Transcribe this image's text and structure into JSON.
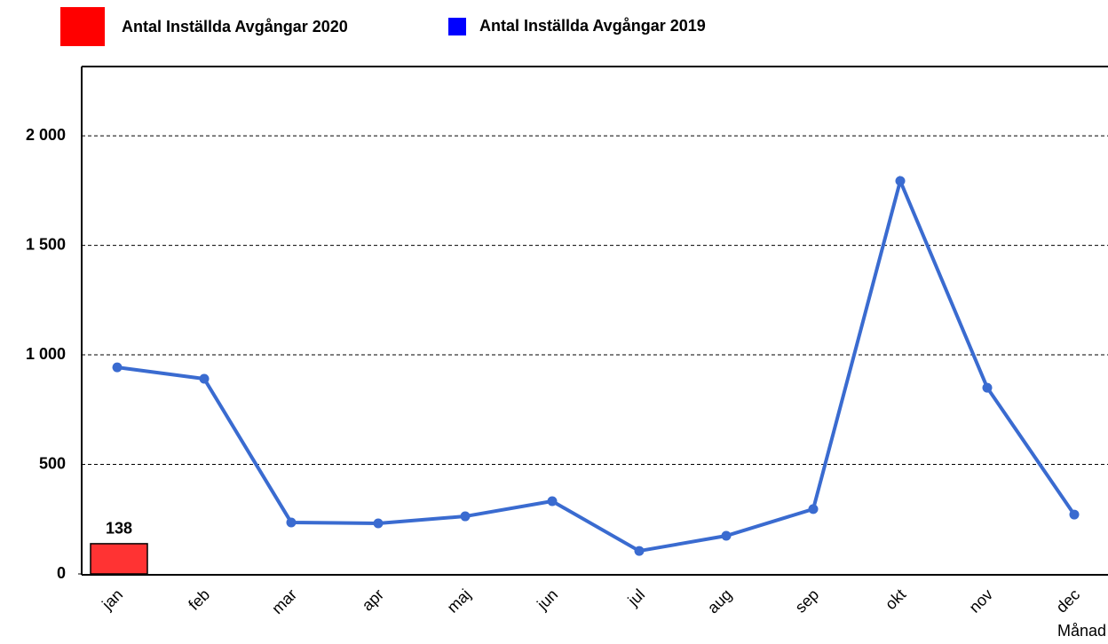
{
  "chart_data": {
    "type": "bar-line",
    "categories": [
      "jan",
      "feb",
      "mar",
      "apr",
      "maj",
      "jun",
      "jul",
      "aug",
      "sep",
      "okt",
      "nov",
      "dec"
    ],
    "series": [
      {
        "name": "Antal Inställda Avgångar 2020",
        "type": "bar",
        "color": "#ff0000",
        "values": [
          138,
          null,
          null,
          null,
          null,
          null,
          null,
          null,
          null,
          null,
          null,
          null
        ]
      },
      {
        "name": "Antal Inställda Avgångar 2019",
        "type": "line",
        "color": "#0000ff",
        "line_color": "#3a6bd0",
        "values": [
          943,
          891,
          235,
          231,
          263,
          332,
          105,
          174,
          296,
          1794,
          850,
          271
        ]
      }
    ],
    "x_label": "Månad",
    "ylim": [
      0,
      2300
    ],
    "yticks": [
      0,
      500,
      {
        "value": 1000,
        "label": "1 000"
      },
      {
        "value": 1500,
        "label": "1 500"
      },
      {
        "value": 2000,
        "label": "2 000"
      }
    ],
    "grid": true
  }
}
